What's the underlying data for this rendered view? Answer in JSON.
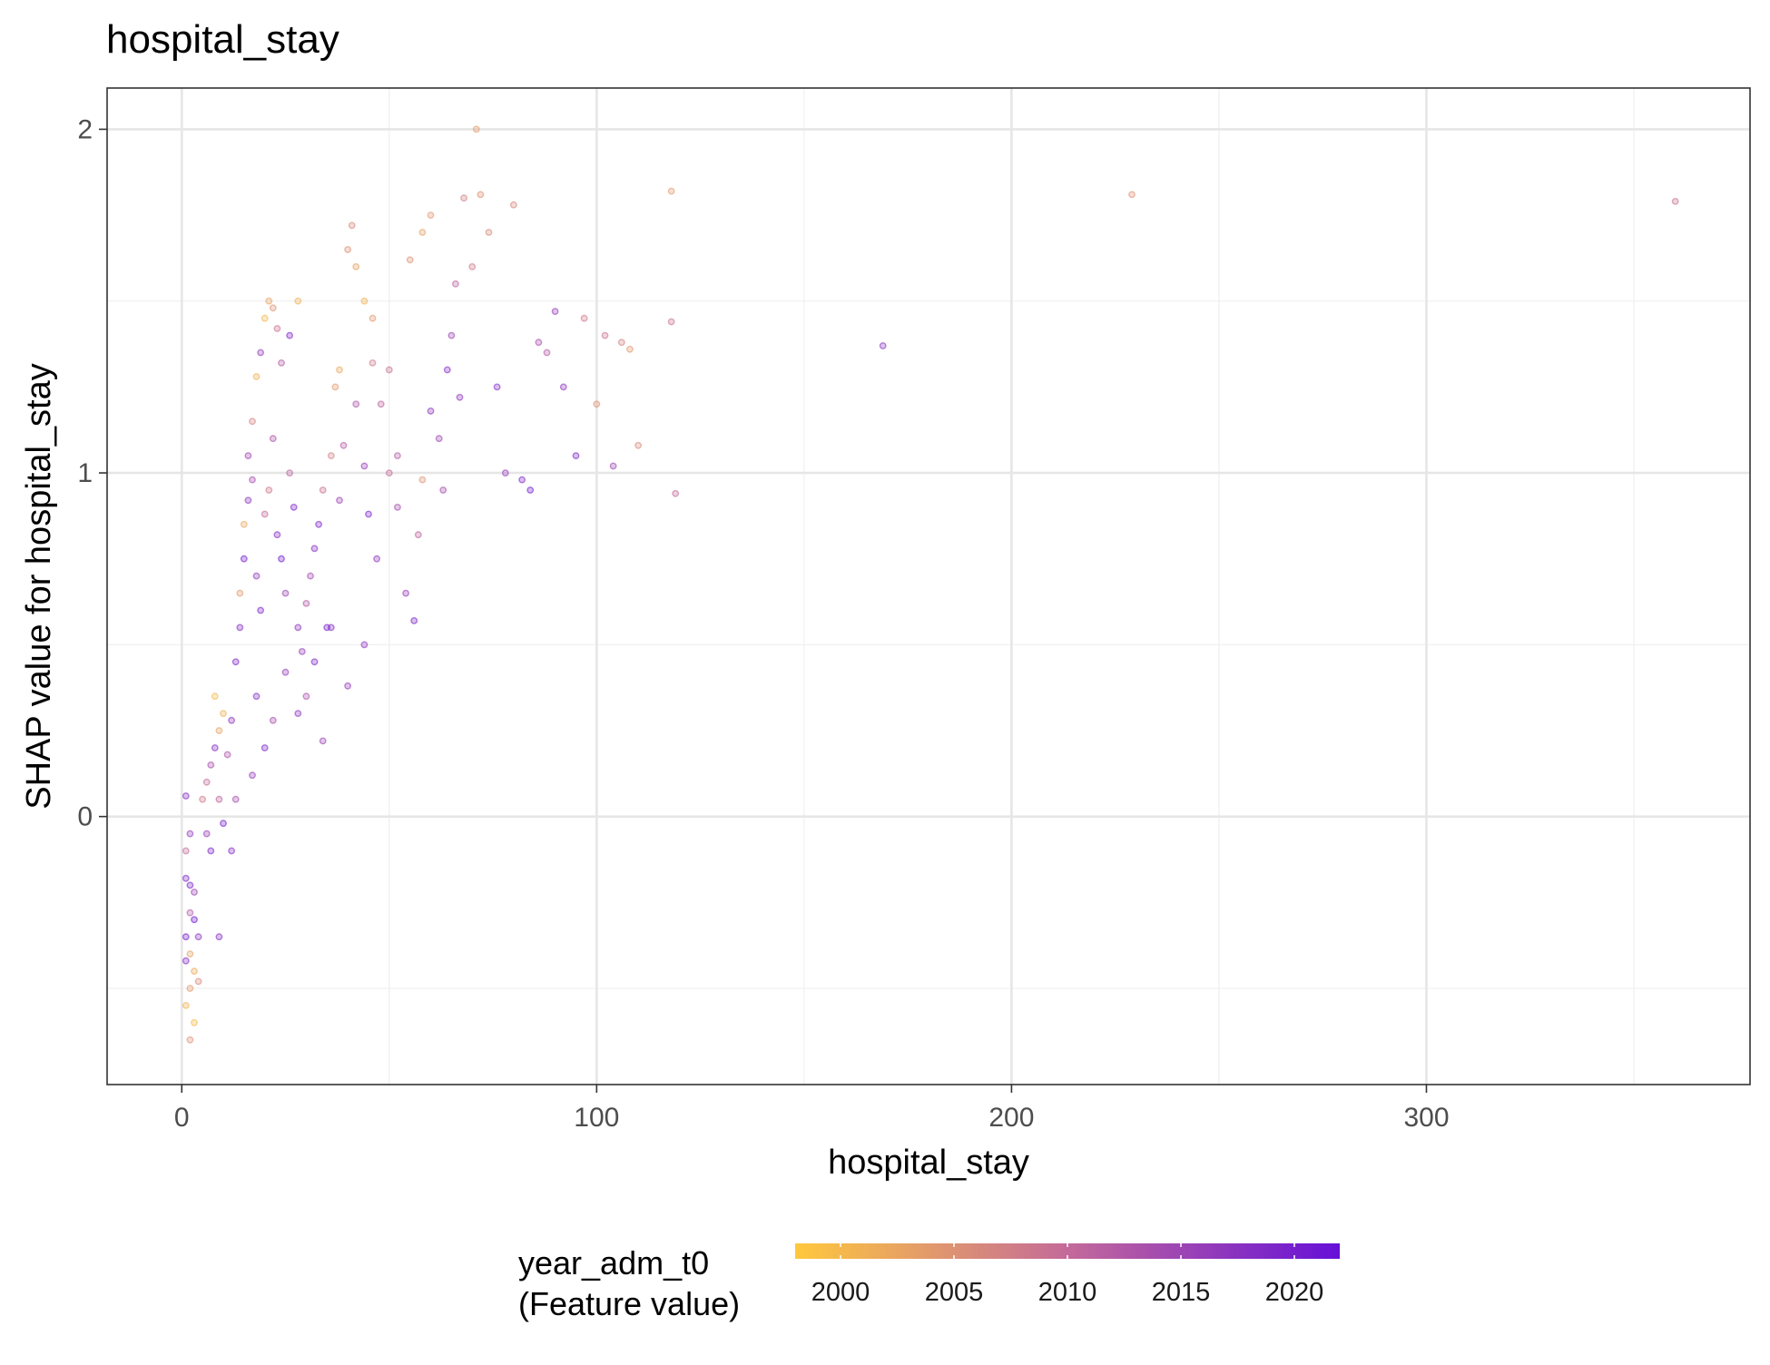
{
  "chart_data": {
    "type": "scatter",
    "title": "hospital_stay",
    "xlabel": "hospital_stay",
    "ylabel": "SHAP value for hospital_stay",
    "xlim": [
      -18,
      378
    ],
    "ylim": [
      -0.78,
      2.12
    ],
    "x_ticks": [
      0,
      100,
      200,
      300
    ],
    "y_ticks": [
      0,
      1,
      2
    ],
    "x_minor_grid": [
      50,
      150,
      250,
      350
    ],
    "y_minor_grid": [
      -0.5,
      0.5,
      1.5
    ],
    "grid": true,
    "legend": {
      "title_line1": "year_adm_t0",
      "title_line2": "(Feature value)",
      "placement": "bottom",
      "type": "colorbar",
      "range": [
        1998,
        2022
      ],
      "ticks": [
        2000,
        2005,
        2010,
        2015,
        2020
      ],
      "color_low": "#FFC83D",
      "color_mid": "#C46A9A",
      "color_high": "#6610D8"
    },
    "series": [
      {
        "points": [
          [
            1,
            0.06,
            2018
          ],
          [
            2,
            -0.05,
            2016
          ],
          [
            1,
            -0.1,
            2010
          ],
          [
            2,
            -0.2,
            2019
          ],
          [
            3,
            -0.3,
            2021
          ],
          [
            1,
            -0.35,
            2020
          ],
          [
            2,
            -0.4,
            2003
          ],
          [
            3,
            -0.45,
            2002
          ],
          [
            2,
            -0.5,
            2004
          ],
          [
            1,
            -0.55,
            2001
          ],
          [
            3,
            -0.6,
            2000
          ],
          [
            2,
            -0.65,
            2005
          ],
          [
            1,
            -0.42,
            2018
          ],
          [
            3,
            -0.22,
            2015
          ],
          [
            2,
            -0.28,
            2012
          ],
          [
            4,
            -0.35,
            2017
          ],
          [
            4,
            -0.48,
            2006
          ],
          [
            1,
            -0.18,
            2019
          ],
          [
            5,
            0.05,
            2008
          ],
          [
            6,
            0.1,
            2010
          ],
          [
            7,
            0.15,
            2014
          ],
          [
            8,
            0.2,
            2018
          ],
          [
            9,
            0.25,
            2003
          ],
          [
            10,
            0.3,
            2001
          ],
          [
            6,
            -0.05,
            2016
          ],
          [
            7,
            -0.1,
            2019
          ],
          [
            8,
            0.35,
            2000
          ],
          [
            9,
            0.05,
            2011
          ],
          [
            10,
            -0.02,
            2020
          ],
          [
            11,
            0.18,
            2013
          ],
          [
            12,
            0.28,
            2017
          ],
          [
            13,
            0.45,
            2019
          ],
          [
            14,
            0.65,
            2004
          ],
          [
            15,
            0.85,
            2002
          ],
          [
            16,
            1.05,
            2015
          ],
          [
            17,
            1.15,
            2007
          ],
          [
            18,
            1.28,
            2001
          ],
          [
            19,
            1.35,
            2016
          ],
          [
            20,
            1.45,
            2000
          ],
          [
            21,
            1.5,
            2003
          ],
          [
            22,
            1.48,
            2005
          ],
          [
            23,
            1.42,
            2009
          ],
          [
            24,
            1.32,
            2012
          ],
          [
            26,
            1.4,
            2019
          ],
          [
            28,
            1.5,
            2001
          ],
          [
            14,
            0.55,
            2018
          ],
          [
            15,
            0.75,
            2020
          ],
          [
            16,
            0.92,
            2017
          ],
          [
            17,
            0.98,
            2014
          ],
          [
            18,
            0.7,
            2016
          ],
          [
            19,
            0.6,
            2019
          ],
          [
            20,
            0.88,
            2010
          ],
          [
            21,
            0.95,
            2008
          ],
          [
            22,
            1.1,
            2013
          ],
          [
            23,
            0.82,
            2018
          ],
          [
            24,
            0.75,
            2020
          ],
          [
            25,
            0.65,
            2015
          ],
          [
            26,
            1.0,
            2011
          ],
          [
            27,
            0.9,
            2019
          ],
          [
            28,
            0.55,
            2017
          ],
          [
            29,
            0.48,
            2016
          ],
          [
            30,
            0.62,
            2012
          ],
          [
            31,
            0.7,
            2014
          ],
          [
            32,
            0.78,
            2018
          ],
          [
            33,
            0.85,
            2019
          ],
          [
            34,
            0.95,
            2009
          ],
          [
            35,
            0.55,
            2020
          ],
          [
            36,
            1.05,
            2007
          ],
          [
            37,
            1.25,
            2004
          ],
          [
            38,
            1.3,
            2002
          ],
          [
            40,
            1.65,
            2005
          ],
          [
            41,
            1.72,
            2006
          ],
          [
            42,
            1.6,
            2003
          ],
          [
            44,
            1.5,
            2001
          ],
          [
            46,
            1.45,
            2004
          ],
          [
            48,
            1.2,
            2011
          ],
          [
            50,
            1.3,
            2009
          ],
          [
            52,
            0.9,
            2014
          ],
          [
            54,
            0.65,
            2016
          ],
          [
            56,
            0.57,
            2019
          ],
          [
            55,
            1.62,
            2005
          ],
          [
            58,
            1.7,
            2003
          ],
          [
            60,
            1.75,
            2004
          ],
          [
            62,
            1.1,
            2015
          ],
          [
            64,
            1.3,
            2018
          ],
          [
            66,
            1.55,
            2011
          ],
          [
            68,
            1.8,
            2007
          ],
          [
            70,
            1.6,
            2008
          ],
          [
            71,
            2.0,
            2004
          ],
          [
            72,
            1.81,
            2005
          ],
          [
            74,
            1.7,
            2006
          ],
          [
            76,
            1.25,
            2018
          ],
          [
            78,
            1.0,
            2016
          ],
          [
            80,
            1.78,
            2006
          ],
          [
            82,
            0.98,
            2019
          ],
          [
            84,
            0.95,
            2020
          ],
          [
            86,
            1.38,
            2014
          ],
          [
            88,
            1.35,
            2012
          ],
          [
            90,
            1.47,
            2016
          ],
          [
            92,
            1.25,
            2017
          ],
          [
            95,
            1.05,
            2019
          ],
          [
            97,
            1.45,
            2008
          ],
          [
            100,
            1.2,
            2005
          ],
          [
            102,
            1.4,
            2009
          ],
          [
            104,
            1.02,
            2015
          ],
          [
            106,
            1.38,
            2007
          ],
          [
            108,
            1.36,
            2004
          ],
          [
            110,
            1.08,
            2006
          ],
          [
            118,
            1.82,
            2004
          ],
          [
            118,
            1.44,
            2009
          ],
          [
            119,
            0.94,
            2010
          ],
          [
            169,
            1.37,
            2017
          ],
          [
            229,
            1.81,
            2005
          ],
          [
            360,
            1.79,
            2009
          ],
          [
            44,
            0.5,
            2017
          ],
          [
            40,
            0.38,
            2016
          ],
          [
            36,
            0.55,
            2018
          ],
          [
            34,
            0.22,
            2015
          ],
          [
            32,
            0.45,
            2019
          ],
          [
            30,
            0.35,
            2013
          ],
          [
            28,
            0.3,
            2017
          ],
          [
            25,
            0.42,
            2016
          ],
          [
            22,
            0.28,
            2014
          ],
          [
            20,
            0.2,
            2019
          ],
          [
            18,
            0.35,
            2018
          ],
          [
            17,
            0.12,
            2016
          ],
          [
            13,
            0.05,
            2014
          ],
          [
            12,
            -0.1,
            2018
          ],
          [
            9,
            -0.35,
            2018
          ],
          [
            60,
            1.18,
            2017
          ],
          [
            58,
            0.98,
            2005
          ],
          [
            45,
            0.88,
            2019
          ],
          [
            47,
            0.75,
            2017
          ],
          [
            50,
            1.0,
            2010
          ],
          [
            52,
            1.05,
            2012
          ],
          [
            46,
            1.32,
            2008
          ],
          [
            42,
            1.2,
            2013
          ],
          [
            39,
            1.08,
            2012
          ],
          [
            38,
            0.92,
            2015
          ],
          [
            44,
            1.02,
            2016
          ],
          [
            65,
            1.4,
            2015
          ],
          [
            67,
            1.22,
            2017
          ],
          [
            63,
            0.95,
            2014
          ],
          [
            57,
            0.82,
            2011
          ]
        ]
      }
    ]
  }
}
